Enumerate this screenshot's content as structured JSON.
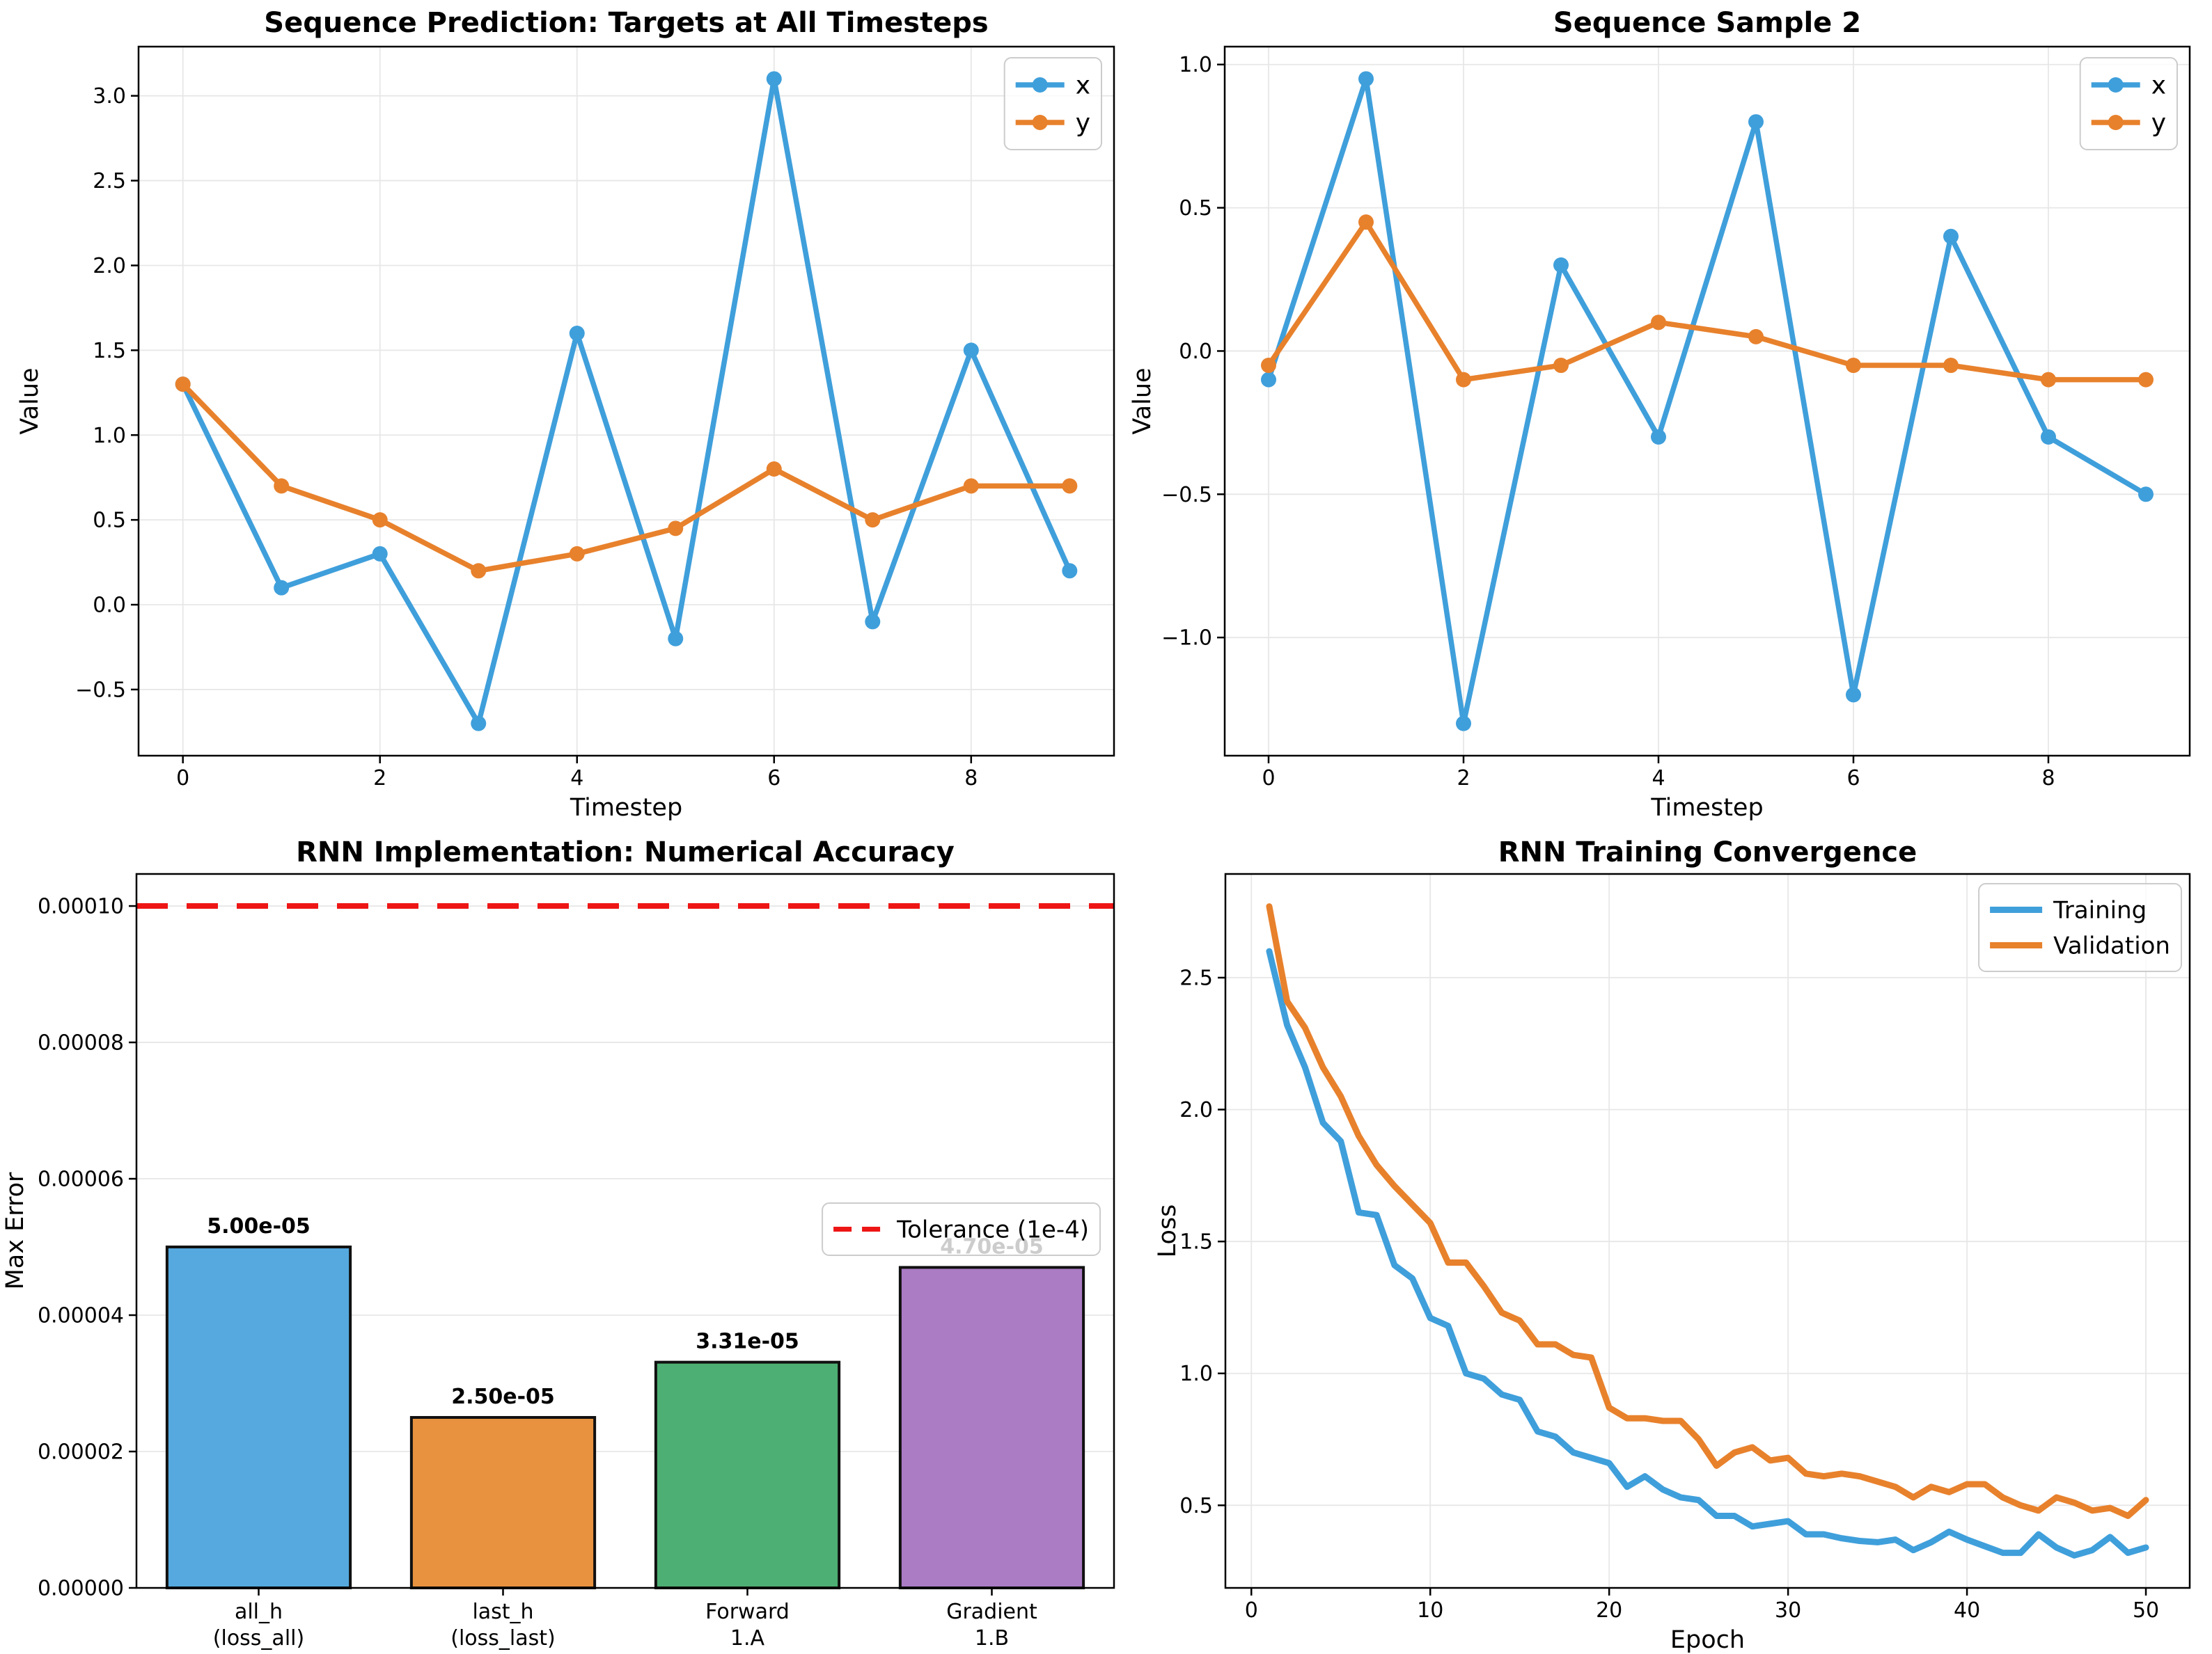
{
  "colors": {
    "blue": "#3f9fdb",
    "orange": "#e8812c",
    "bar_blue": "#55a9df",
    "bar_orange": "#e8923f",
    "bar_green": "#4daf73",
    "bar_purple": "#ab7bc4",
    "red": "#ee1515",
    "grid": "#e7e7e7",
    "spine": "#000000",
    "legend_edge": "#cccccc"
  },
  "charts": [
    {
      "id": "seq_pred",
      "type": "line",
      "title": "Sequence Prediction: Targets at All Timesteps",
      "xlabel": "Timestep",
      "ylabel": "Value",
      "grid": "both",
      "legend_pos": "top-right",
      "legend_markers": true,
      "x": [
        0,
        1,
        2,
        3,
        4,
        5,
        6,
        7,
        8,
        9
      ],
      "series": [
        {
          "label": "x",
          "color": "blue",
          "values": [
            1.3,
            0.1,
            0.3,
            -0.7,
            1.6,
            -0.2,
            3.1,
            -0.1,
            1.5,
            0.2
          ]
        },
        {
          "label": "y",
          "color": "orange",
          "values": [
            1.3,
            0.7,
            0.5,
            0.2,
            0.3,
            0.45,
            0.8,
            0.5,
            0.7,
            0.7
          ]
        }
      ],
      "xlim": [
        -0.45,
        9.45
      ],
      "ylim": [
        -0.89,
        3.29
      ],
      "xticks": [
        0,
        2,
        4,
        6,
        8
      ],
      "xtick_labels": [
        "0",
        "2",
        "4",
        "6",
        "8"
      ],
      "yticks": [
        -0.5,
        0.0,
        0.5,
        1.0,
        1.5,
        2.0,
        2.5,
        3.0
      ],
      "ytick_labels": [
        "−0.5",
        "0.0",
        "0.5",
        "1.0",
        "1.5",
        "2.0",
        "2.5",
        "3.0"
      ]
    },
    {
      "id": "seq_sample_2",
      "type": "line",
      "title": "Sequence Sample 2",
      "xlabel": "Timestep",
      "ylabel": "Value",
      "grid": "both",
      "legend_pos": "top-right",
      "legend_markers": true,
      "x": [
        0,
        1,
        2,
        3,
        4,
        5,
        6,
        7,
        8,
        9
      ],
      "series": [
        {
          "label": "x",
          "color": "blue",
          "values": [
            -0.1,
            0.95,
            -1.3,
            0.3,
            -0.3,
            0.8,
            -1.2,
            0.4,
            -0.3,
            -0.5
          ]
        },
        {
          "label": "y",
          "color": "orange",
          "values": [
            -0.05,
            0.45,
            -0.1,
            -0.05,
            0.1,
            0.05,
            -0.05,
            -0.05,
            -0.1,
            -0.1
          ]
        }
      ],
      "xlim": [
        -0.45,
        9.45
      ],
      "ylim": [
        -1.4125,
        1.0625
      ],
      "xticks": [
        0,
        2,
        4,
        6,
        8
      ],
      "xtick_labels": [
        "0",
        "2",
        "4",
        "6",
        "8"
      ],
      "yticks": [
        -1.0,
        -0.5,
        0.0,
        0.5,
        1.0
      ],
      "ytick_labels": [
        "−1.0",
        "−0.5",
        "0.0",
        "0.5",
        "1.0"
      ]
    },
    {
      "id": "accuracy",
      "type": "bar",
      "title": "RNN Implementation: Numerical Accuracy",
      "xlabel": "",
      "ylabel": "Max Error",
      "grid": "y",
      "legend_pos": "center-right",
      "categories": [
        [
          "all_h",
          "(loss_all)"
        ],
        [
          "last_h",
          "(loss_last)"
        ],
        [
          "Forward",
          "1.A"
        ],
        [
          "Gradient",
          "1.B"
        ]
      ],
      "values": [
        5e-05,
        2.5e-05,
        3.31e-05,
        4.7e-05
      ],
      "value_labels": [
        "5.00e-05",
        "2.50e-05",
        "3.31e-05",
        "4.70e-05"
      ],
      "bar_colors": [
        "bar_blue",
        "bar_orange",
        "bar_green",
        "bar_purple"
      ],
      "bar_width": 0.75,
      "xlim": [
        -0.5,
        3.5
      ],
      "ylim": [
        0,
        0.0001047
      ],
      "yticks": [
        0,
        2e-05,
        4e-05,
        6e-05,
        8e-05,
        0.0001
      ],
      "ytick_labels": [
        "0.00000",
        "0.00002",
        "0.00004",
        "0.00006",
        "0.00008",
        "0.00010"
      ],
      "tolerance": {
        "value": 0.0001,
        "legend_label": "Tolerance (1e-4)"
      }
    },
    {
      "id": "training",
      "type": "line",
      "title": "RNN Training Convergence",
      "xlabel": "Epoch",
      "ylabel": "Loss",
      "grid": "both",
      "legend_pos": "top-right",
      "legend_markers": false,
      "x": [
        1,
        2,
        3,
        4,
        5,
        6,
        7,
        8,
        9,
        10,
        11,
        12,
        13,
        14,
        15,
        16,
        17,
        18,
        19,
        20,
        21,
        22,
        23,
        24,
        25,
        26,
        27,
        28,
        29,
        30,
        31,
        32,
        33,
        34,
        35,
        36,
        37,
        38,
        39,
        40,
        41,
        42,
        43,
        44,
        45,
        46,
        47,
        48,
        49,
        50
      ],
      "series": [
        {
          "label": "Training",
          "color": "blue",
          "values": [
            2.6,
            2.32,
            2.16,
            1.95,
            1.88,
            1.61,
            1.6,
            1.41,
            1.36,
            1.21,
            1.18,
            1.0,
            0.98,
            0.92,
            0.9,
            0.78,
            0.76,
            0.7,
            0.68,
            0.66,
            0.57,
            0.61,
            0.56,
            0.53,
            0.52,
            0.46,
            0.46,
            0.42,
            0.43,
            0.44,
            0.39,
            0.39,
            0.375,
            0.365,
            0.36,
            0.37,
            0.33,
            0.36,
            0.4,
            0.37,
            0.345,
            0.32,
            0.32,
            0.39,
            0.34,
            0.31,
            0.33,
            0.38,
            0.32,
            0.34
          ]
        },
        {
          "label": "Validation",
          "color": "orange",
          "values": [
            2.77,
            2.41,
            2.31,
            2.16,
            2.05,
            1.9,
            1.79,
            1.71,
            1.64,
            1.57,
            1.42,
            1.42,
            1.33,
            1.23,
            1.2,
            1.11,
            1.11,
            1.07,
            1.06,
            0.87,
            0.83,
            0.83,
            0.82,
            0.82,
            0.75,
            0.65,
            0.7,
            0.72,
            0.67,
            0.68,
            0.62,
            0.61,
            0.62,
            0.61,
            0.59,
            0.57,
            0.53,
            0.57,
            0.55,
            0.58,
            0.58,
            0.53,
            0.5,
            0.48,
            0.53,
            0.51,
            0.48,
            0.49,
            0.46,
            0.52
          ]
        }
      ],
      "xlim": [
        -1.45,
        52.45
      ],
      "ylim": [
        0.187,
        2.893
      ],
      "xticks": [
        0,
        10,
        20,
        30,
        40,
        50
      ],
      "xtick_labels": [
        "0",
        "10",
        "20",
        "30",
        "40",
        "50"
      ],
      "yticks": [
        0.5,
        1.0,
        1.5,
        2.0,
        2.5
      ],
      "ytick_labels": [
        "0.5",
        "1.0",
        "1.5",
        "2.0",
        "2.5"
      ]
    }
  ]
}
